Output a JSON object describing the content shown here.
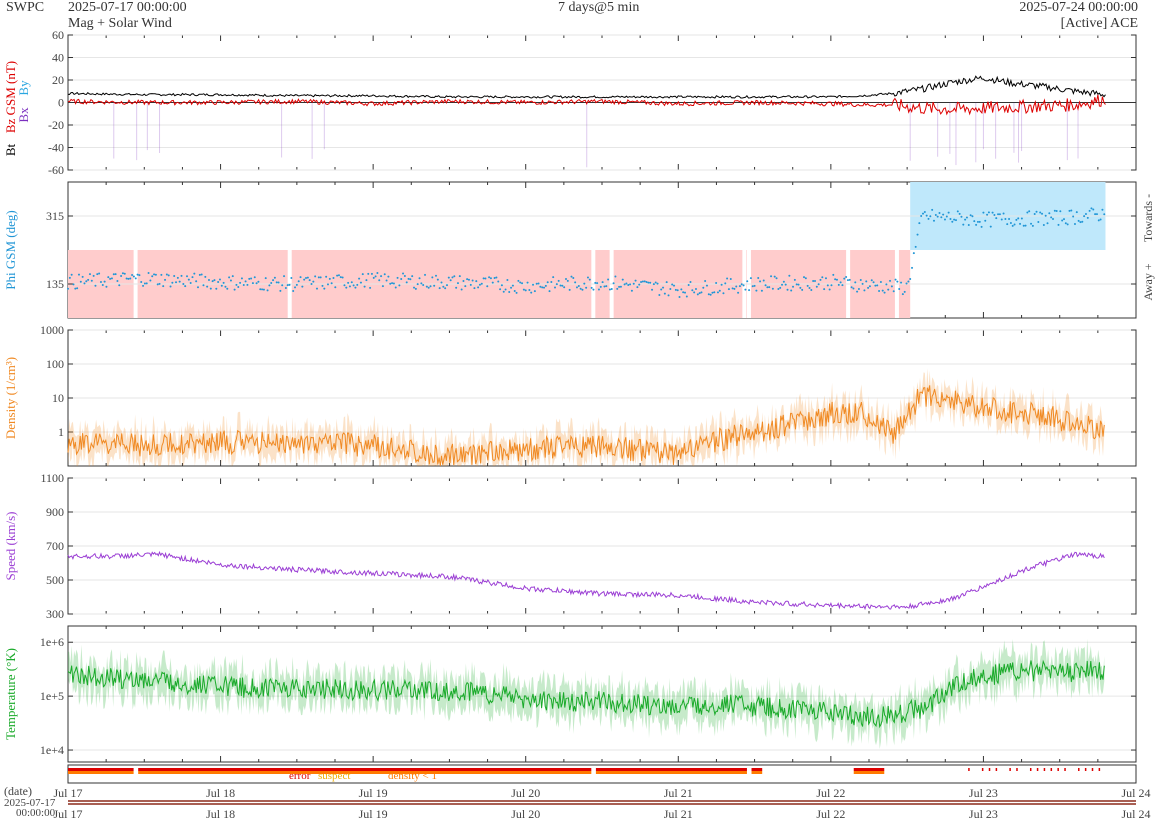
{
  "header": {
    "site": "SWPC",
    "start": "2025-07-17 00:00:00",
    "title_left": "Mag + Solar Wind",
    "span": "7 days@5 min",
    "end": "2025-07-24 00:00:00",
    "source": "[Active] ACE"
  },
  "colors": {
    "bt": "#000000",
    "bz": "#dd0000",
    "by": "#2aa6e0",
    "bx": "#7b2fbf",
    "phi": "#2196d6",
    "towards_fill": "#bfe8fb",
    "away_fill": "#ffcccc",
    "density": "#f08a24",
    "speed": "#9b3fd4",
    "temperature": "#1aaa2a",
    "flag_error": "#dd0000",
    "flag_suspect": "#f0b000",
    "flag_density": "#ff7a00"
  },
  "chart_data": [
    {
      "type": "line",
      "id": "mag",
      "ylabel_parts": [
        "Bt",
        "Bz GSM (nT)",
        "Bx",
        "By"
      ],
      "ylim": [
        -60,
        60
      ],
      "yticks": [
        -60,
        -40,
        -20,
        0,
        20,
        40,
        60
      ],
      "x_range": [
        "2025-07-17",
        "2025-07-24"
      ],
      "grid": true,
      "series": [
        {
          "name": "Bt",
          "x": [
            0,
            0.5,
            1,
            1.5,
            2,
            2.5,
            3,
            3.5,
            4,
            4.5,
            5,
            5.2,
            5.4,
            5.6,
            5.8,
            6,
            6.2,
            6.4,
            6.6,
            6.8
          ],
          "values": [
            8,
            7,
            7,
            6,
            6,
            5,
            5,
            5,
            5,
            5,
            5,
            6,
            8,
            12,
            18,
            22,
            17,
            14,
            10,
            7
          ]
        },
        {
          "name": "Bz GSM",
          "x": [
            0,
            0.5,
            1,
            1.5,
            2,
            2.5,
            3,
            3.5,
            4,
            4.5,
            5,
            5.2,
            5.4,
            5.6,
            5.8,
            6,
            6.2,
            6.4,
            6.6,
            6.8
          ],
          "values": [
            1,
            0,
            0,
            1,
            -1,
            1,
            0,
            1,
            -1,
            0,
            -1,
            -2,
            -2,
            -5,
            -6,
            -5,
            -4,
            -3,
            -2,
            3
          ]
        }
      ]
    },
    {
      "type": "scatter",
      "id": "phi",
      "ylabel": "Phi GSM (deg)",
      "right_labels": [
        "Towards -",
        "Away +"
      ],
      "yticks": [
        135,
        315
      ],
      "ylim": [
        45,
        405
      ],
      "x_range": [
        "2025-07-17",
        "2025-07-24"
      ],
      "away_until_day": 5.52,
      "towards_from_day": 5.52,
      "series": [
        {
          "name": "Phi",
          "x": [
            0,
            0.5,
            1,
            1.5,
            2,
            2.5,
            3,
            3.5,
            4,
            4.5,
            5,
            5.5,
            5.6,
            6,
            6.5,
            6.8
          ],
          "values": [
            140,
            150,
            140,
            135,
            145,
            140,
            130,
            140,
            120,
            135,
            140,
            125,
            315,
            305,
            310,
            320
          ]
        }
      ]
    },
    {
      "type": "area",
      "id": "density",
      "ylabel": "Density (1/cm³)",
      "scale": "log",
      "ylim": [
        0.1,
        1000
      ],
      "yticks": [
        1,
        10,
        100,
        1000
      ],
      "x_range": [
        "2025-07-17",
        "2025-07-24"
      ],
      "series": [
        {
          "name": "Density",
          "x": [
            0,
            0.5,
            1,
            1.5,
            2,
            2.5,
            3,
            3.5,
            4,
            4.2,
            4.5,
            4.8,
            5,
            5.2,
            5.4,
            5.6,
            6,
            6.4,
            6.8
          ],
          "values": [
            0.5,
            0.4,
            0.5,
            0.5,
            0.4,
            0.2,
            0.3,
            0.4,
            0.2,
            0.5,
            1,
            2,
            3.5,
            4,
            0.8,
            13,
            5,
            3,
            1
          ]
        }
      ]
    },
    {
      "type": "line",
      "id": "speed",
      "ylabel": "Speed (km/s)",
      "ylim": [
        300,
        1100
      ],
      "yticks": [
        300,
        500,
        700,
        900,
        1100
      ],
      "x_range": [
        "2025-07-17",
        "2025-07-24"
      ],
      "series": [
        {
          "name": "Speed",
          "x": [
            0,
            0.3,
            0.6,
            1,
            1.5,
            2,
            2.5,
            2.8,
            3,
            3.5,
            4,
            4.5,
            5,
            5.5,
            5.8,
            6,
            6.3,
            6.6,
            6.8
          ],
          "values": [
            640,
            640,
            650,
            590,
            560,
            540,
            520,
            480,
            450,
            420,
            410,
            370,
            350,
            340,
            390,
            460,
            570,
            650,
            640
          ]
        }
      ]
    },
    {
      "type": "area",
      "id": "temperature",
      "ylabel": "Temperature (°K)",
      "scale": "log",
      "ylim": [
        6000,
        2000000
      ],
      "yticks": [
        10000,
        100000,
        1000000
      ],
      "ytick_labels": [
        "1e+4",
        "1e+5",
        "1e+6"
      ],
      "x_range": [
        "2025-07-17",
        "2025-07-24"
      ],
      "series": [
        {
          "name": "Temperature",
          "x": [
            0,
            0.5,
            1,
            1.5,
            2,
            2.5,
            2.8,
            3,
            3.5,
            4,
            4.3,
            4.6,
            5,
            5.3,
            5.6,
            5.9,
            6.2,
            6.5,
            6.8
          ],
          "values": [
            250000,
            200000,
            150000,
            140000,
            130000,
            120000,
            110000,
            80000,
            80000,
            60000,
            70000,
            60000,
            50000,
            40000,
            60000,
            200000,
            300000,
            280000,
            300000
          ]
        }
      ]
    }
  ],
  "flags": {
    "legend": [
      "error",
      "suspect",
      "density < 1"
    ]
  },
  "x_axis": {
    "ticks": [
      "Jul 17",
      "Jul 18",
      "Jul 19",
      "Jul 20",
      "Jul 21",
      "Jul 22",
      "Jul 23",
      "Jul 24"
    ],
    "date_label": "(date)",
    "timeline_start": [
      "2025-07-17",
      "00:00:00"
    ]
  }
}
